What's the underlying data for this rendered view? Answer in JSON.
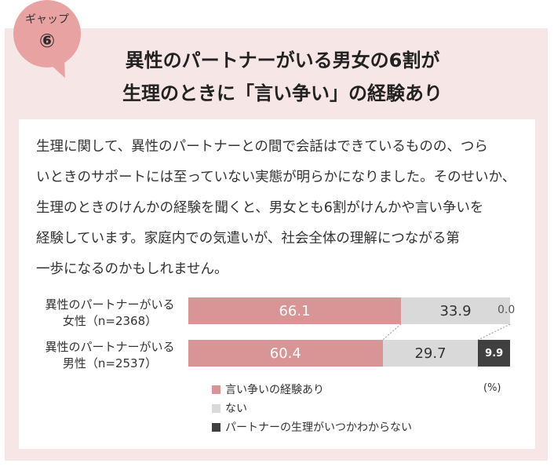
{
  "badge": {
    "label": "ギャップ",
    "number": "⑥"
  },
  "title": [
    "異性のパートナーがいる男女の6割が",
    "生理のときに「言い争い」の経験あり"
  ],
  "body_lines": [
    "生理に関して、異性のパートナーとの間で会話はできているものの、つら",
    "いときのサポートには至っていない実態が明らかになりました。そのせいか、",
    "生理のときのけんかの経験を聞くと、男女とも6割がけんかや言い争いを",
    "経験しています。家庭内での気遣いが、社会全体の理解につながる第",
    "一歩になるのかもしれません。"
  ],
  "chart_data": {
    "type": "bar",
    "stacked": true,
    "orientation": "horizontal",
    "categories": [
      [
        "異性のパートナーがいる",
        "女性（n=2368）"
      ],
      [
        "異性のパートナーがいる",
        "男性（n=2537）"
      ]
    ],
    "series": [
      {
        "name": "言い争いの経験あり",
        "values": [
          66.1,
          60.4
        ],
        "labels": [
          "66.1",
          "60.4"
        ],
        "color": "#d99595",
        "text_color": "#ffffff"
      },
      {
        "name": "ない",
        "values": [
          33.9,
          29.7
        ],
        "labels": [
          "33.9",
          "29.7"
        ],
        "color": "#d9d9d9",
        "text_color": "#333333"
      },
      {
        "name": "パートナーの生理がいつかわからない",
        "values": [
          0.0,
          9.9
        ],
        "labels": [
          "0.0",
          "9.9"
        ],
        "color": "#404040",
        "text_color": "#ffffff"
      }
    ],
    "unit": "(%)",
    "xlim": [
      0,
      100
    ],
    "legend_position": "bottom"
  }
}
